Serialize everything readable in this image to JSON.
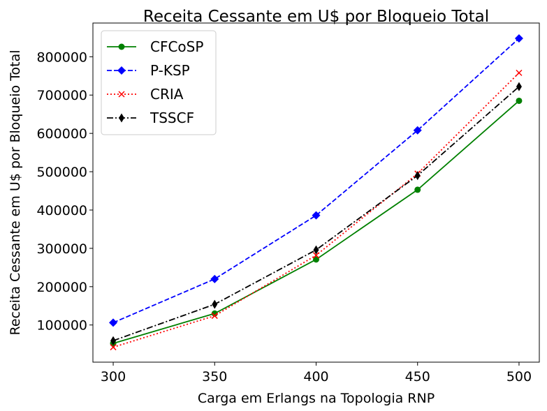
{
  "chart_data": {
    "type": "line",
    "title": "Receita Cessante em U$ por Bloqueio Total",
    "xlabel": "Carga em Erlangs na Topologia RNP",
    "ylabel": "Receita Cessante em U$ por Bloqueio Total",
    "x": [
      300,
      350,
      400,
      450,
      500
    ],
    "x_ticks": [
      300,
      350,
      400,
      450,
      500
    ],
    "y_ticks": [
      100000,
      200000,
      300000,
      400000,
      500000,
      600000,
      700000,
      800000
    ],
    "xlim": [
      290,
      510
    ],
    "ylim": [
      3000,
      888000
    ],
    "grid": false,
    "legend_position": "top-left",
    "series": [
      {
        "name": "CFCoSP",
        "values": [
          52000,
          130000,
          271000,
          453000,
          685000
        ],
        "color": "#008000",
        "dash": "solid",
        "marker": "circle"
      },
      {
        "name": "P-KSP",
        "values": [
          106000,
          220000,
          386000,
          608000,
          848000
        ],
        "color": "#0000ff",
        "dash": "dashed",
        "marker": "diamond"
      },
      {
        "name": "CRIA",
        "values": [
          42000,
          124000,
          282000,
          495000,
          758000
        ],
        "color": "#ff0000",
        "dash": "dotted",
        "marker": "x"
      },
      {
        "name": "TSSCF",
        "values": [
          59000,
          154000,
          296000,
          490000,
          722000
        ],
        "color": "#000000",
        "dash": "dashdot",
        "marker": "thin-diamond"
      }
    ]
  }
}
